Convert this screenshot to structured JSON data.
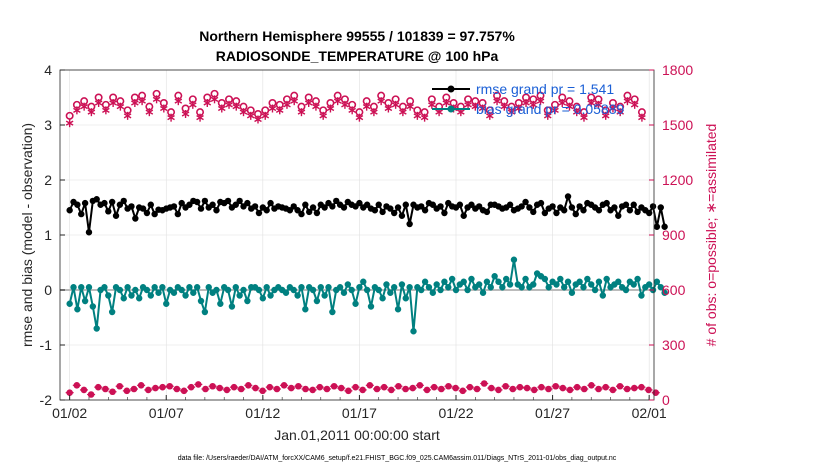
{
  "chart_data": {
    "type": "line",
    "title": "Northern Hemisphere 99555 / 101839 = 97.757%",
    "subtitle": "RADIOSONDE_TEMPERATURE @ 100 hPa",
    "xlabel": "Jan.01,2011 00:00:00 start",
    "ylabel_left": "rmse and bias (model - observation)",
    "ylabel_right": "# of obs: o=possible; ∗=assimilated",
    "footer": "data file: /Users/raeder/DAI/ATM_forcXX/CAM6_setup/f.e21.FHIST_BGC.f09_025.CAM6assim.011/Diags_NTrS_2011-01/obs_diag_output.nc",
    "x_ticks": [
      "01/02",
      "01/07",
      "01/12",
      "01/17",
      "01/22",
      "01/27",
      "02/01"
    ],
    "x_tick_days": [
      1,
      6,
      11,
      16,
      21,
      26,
      31
    ],
    "xlim": [
      0.5,
      31.25
    ],
    "ylim_left": [
      -2,
      4
    ],
    "ylim_right": [
      0,
      1800
    ],
    "y_ticks_left": [
      "-2",
      "-1",
      "0",
      "1",
      "2",
      "3",
      "4"
    ],
    "y_ticks_right": [
      "0",
      "300",
      "600",
      "900",
      "1200",
      "1500",
      "1800"
    ],
    "colors": {
      "rmse": "#000000",
      "bias": "#008080",
      "obs": "#cc1155",
      "legend_text": "#1a5fd6",
      "zero_line": "#bbbbbb"
    },
    "legend": {
      "placement": "top-right",
      "rmse_label": "rmse grand pr = 1.541",
      "bias_label": "bias grand pr = 0.05889"
    },
    "series": [
      {
        "key": "rmse",
        "values": [
          1.45,
          1.6,
          1.55,
          1.38,
          1.58,
          1.05,
          1.62,
          1.65,
          1.55,
          1.58,
          1.43,
          1.6,
          1.35,
          1.55,
          1.62,
          1.48,
          1.52,
          1.3,
          1.5,
          1.48,
          1.4,
          1.55,
          1.38,
          1.46,
          1.45,
          1.48,
          1.5,
          1.52,
          1.38,
          1.58,
          1.5,
          1.55,
          1.62,
          1.6,
          1.48,
          1.62,
          1.5,
          1.55,
          1.45,
          1.6,
          1.58,
          1.62,
          1.5,
          1.55,
          1.62,
          1.52,
          1.58,
          1.48,
          1.52,
          1.4,
          1.5,
          1.45,
          1.58,
          1.48,
          1.52,
          1.5,
          1.48,
          1.45,
          1.52,
          1.45,
          1.38,
          1.55,
          1.42,
          1.5,
          1.4,
          1.55,
          1.5,
          1.58,
          1.52,
          1.62,
          1.55,
          1.5,
          1.6,
          1.55,
          1.52,
          1.58,
          1.5,
          1.55,
          1.48,
          1.45,
          1.55,
          1.42,
          1.52,
          1.48,
          1.4,
          1.5,
          1.35,
          1.55,
          1.2,
          1.55,
          1.5,
          1.52,
          1.45,
          1.58,
          1.55,
          1.48,
          1.52,
          1.4,
          1.58,
          1.52,
          1.5,
          1.55,
          1.35,
          1.5,
          1.55,
          1.48,
          1.52,
          1.45,
          1.42,
          1.55,
          1.55,
          1.52,
          1.48,
          1.5,
          1.55,
          1.45,
          1.48,
          1.52,
          1.6,
          1.5,
          1.42,
          1.55,
          1.58,
          1.4,
          1.48,
          1.52,
          1.4,
          1.5,
          1.45,
          1.7,
          1.5,
          1.38,
          1.52,
          1.45,
          1.58,
          1.55,
          1.5,
          1.45,
          1.55,
          1.58,
          1.45,
          1.5,
          1.35,
          1.52,
          1.55,
          1.45,
          1.55,
          1.42,
          1.5,
          1.45,
          1.4,
          1.52,
          1.15,
          1.5,
          1.15
        ],
        "x_start": 1.0,
        "x_step": 0.2
      },
      {
        "key": "bias",
        "values": [
          -0.25,
          0.05,
          -0.35,
          0.05,
          -0.2,
          0.05,
          -0.3,
          -0.7,
          0.0,
          0.05,
          -0.1,
          -0.4,
          0.05,
          0.0,
          -0.15,
          0.05,
          -0.1,
          0.0,
          -0.15,
          0.05,
          0.0,
          -0.1,
          0.05,
          -0.05,
          0.05,
          -0.25,
          0.0,
          -0.05,
          0.05,
          0.0,
          -0.1,
          0.05,
          -0.05,
          0.05,
          -0.2,
          -0.4,
          0.05,
          -0.05,
          0.0,
          -0.25,
          0.05,
          0.0,
          -0.3,
          0.05,
          -0.1,
          0.0,
          -0.2,
          0.05,
          0.05,
          0.0,
          -0.15,
          0.05,
          -0.1,
          0.0,
          0.05,
          0.0,
          -0.05,
          0.05,
          0.0,
          -0.1,
          0.05,
          -0.35,
          0.05,
          0.0,
          -0.2,
          0.05,
          -0.1,
          0.05,
          -0.4,
          0.0,
          0.05,
          -0.05,
          0.1,
          0.0,
          -0.25,
          0.05,
          0.15,
          0.0,
          -0.3,
          0.05,
          0.0,
          -0.15,
          0.1,
          -0.05,
          0.05,
          -0.35,
          0.1,
          -0.15,
          0.05,
          -0.75,
          0.05,
          0.0,
          0.15,
          0.05,
          -0.05,
          0.1,
          0.0,
          0.15,
          0.05,
          0.2,
          0.0,
          0.1,
          0.15,
          0.0,
          0.2,
          0.05,
          0.1,
          -0.05,
          0.15,
          0.05,
          0.25,
          0.15,
          0.05,
          0.2,
          0.1,
          0.55,
          0.1,
          0.05,
          0.2,
          0.05,
          0.1,
          0.3,
          0.25,
          0.2,
          0.05,
          0.15,
          0.1,
          0.2,
          0.05,
          0.15,
          -0.05,
          0.1,
          0.15,
          0.05,
          0.2,
          0.1,
          0.0,
          0.15,
          -0.1,
          0.2,
          0.05,
          0.1,
          0.15,
          0.05,
          0.0,
          0.15,
          0.1,
          0.2,
          -0.1,
          0.05,
          0.1,
          0.0,
          0.15,
          0.05,
          -0.05
        ],
        "x_start": 1.0,
        "x_step": 0.2
      },
      {
        "key": "obs_possible",
        "values": [
          1550,
          1610,
          1630,
          1600,
          1650,
          1610,
          1650,
          1630,
          1580,
          1650,
          1660,
          1600,
          1670,
          1620,
          1570,
          1660,
          1590,
          1640,
          1570,
          1650,
          1670,
          1620,
          1640,
          1630,
          1600,
          1580,
          1560,
          1580,
          1620,
          1610,
          1640,
          1660,
          1600,
          1650,
          1630,
          1580,
          1620,
          1660,
          1640,
          1610,
          1570,
          1630,
          1600,
          1660,
          1620,
          1640,
          1600,
          1630,
          1580,
          1570,
          1640,
          1600,
          1650,
          1620,
          1600,
          1640,
          1630,
          1620,
          1580,
          1660,
          1630,
          1600,
          1620,
          1650,
          1640,
          1660,
          1580,
          1610,
          1650,
          1630,
          1600,
          1570,
          1650,
          1640,
          1580,
          1620,
          1600,
          1660,
          1640,
          1570
        ],
        "x_start": 1.0,
        "x_step": 0.375
      },
      {
        "key": "obs_assimilated",
        "values": [
          1510,
          1580,
          1600,
          1570,
          1620,
          1580,
          1620,
          1600,
          1550,
          1620,
          1630,
          1570,
          1640,
          1590,
          1540,
          1630,
          1560,
          1610,
          1540,
          1620,
          1640,
          1590,
          1610,
          1600,
          1570,
          1550,
          1530,
          1550,
          1590,
          1580,
          1610,
          1630,
          1570,
          1620,
          1600,
          1550,
          1590,
          1630,
          1610,
          1580,
          1540,
          1600,
          1570,
          1630,
          1590,
          1610,
          1570,
          1600,
          1550,
          1540,
          1610,
          1570,
          1620,
          1590,
          1570,
          1610,
          1600,
          1590,
          1550,
          1630,
          1600,
          1570,
          1590,
          1620,
          1610,
          1630,
          1550,
          1580,
          1620,
          1600,
          1570,
          1540,
          1620,
          1610,
          1550,
          1590,
          1570,
          1630,
          1610,
          1540
        ],
        "x_start": 1.0,
        "x_step": 0.375
      },
      {
        "key": "obs_bottom_possible",
        "values": [
          40,
          80,
          55,
          30,
          70,
          60,
          45,
          75,
          50,
          60,
          80,
          55,
          65,
          70,
          75,
          60,
          50,
          70,
          85,
          60,
          75,
          65,
          55,
          70,
          60,
          80,
          65,
          50,
          70,
          60,
          80,
          65,
          75,
          60,
          55,
          70,
          60,
          75,
          65,
          50,
          70,
          55,
          80,
          60,
          70,
          55,
          75,
          60,
          65,
          80,
          55,
          70,
          60,
          75,
          65,
          50,
          70,
          60,
          90,
          65,
          55,
          75,
          60,
          70,
          65,
          55,
          70,
          60,
          75,
          65,
          55,
          70,
          60,
          80,
          60,
          70,
          55,
          75,
          60,
          65,
          70,
          55,
          40
        ],
        "x_start": 1.0,
        "x_step": 0.37
      }
    ]
  }
}
